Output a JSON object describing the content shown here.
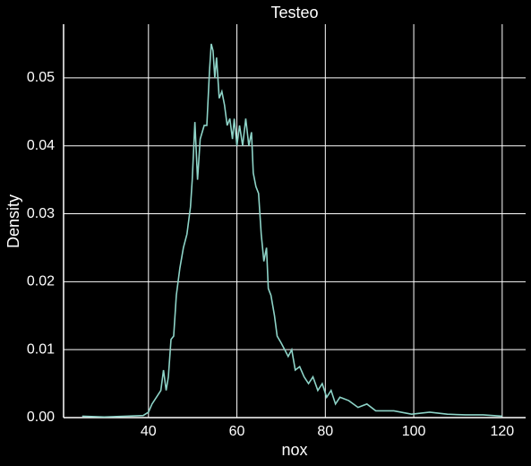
{
  "chart_data": {
    "type": "line",
    "title": "Testeo",
    "xlabel": "nox",
    "ylabel": "Density",
    "series": [
      {
        "color": "#8dd3c7",
        "x": [
          25,
          30,
          35,
          38.8,
          40,
          40.8,
          41.8,
          42.8,
          43.4,
          44,
          44.5,
          45.1,
          45.7,
          46.3,
          47.1,
          47.9,
          48.7,
          49.5,
          49.9,
          50.5,
          51.1,
          51.7,
          52.6,
          53.2,
          53.8,
          54.2,
          54.6,
          55,
          55.4,
          56,
          56.6,
          57.2,
          57.8,
          58.4,
          59,
          59.4,
          60,
          60.6,
          61.3,
          62,
          62.7,
          63.3,
          63.7,
          64.3,
          64.9,
          65.5,
          66.1,
          66.7,
          67.1,
          67.7,
          68.5,
          69.1,
          70,
          70.8,
          71.6,
          72.4,
          73.2,
          74.2,
          75.2,
          76.2,
          77.2,
          78.3,
          79.3,
          80.3,
          81.3,
          82.3,
          83.3,
          85.3,
          87.4,
          89.4,
          91.4,
          95.5,
          99.5,
          103.6,
          107.6,
          111.7,
          115.7,
          120
        ],
        "values": [
          0.0002,
          0.0001,
          0.0002,
          0.0003,
          0.0008,
          0.002,
          0.003,
          0.004,
          0.007,
          0.004,
          0.006,
          0.0115,
          0.012,
          0.018,
          0.022,
          0.025,
          0.027,
          0.031,
          0.035,
          0.0435,
          0.035,
          0.041,
          0.043,
          0.043,
          0.051,
          0.055,
          0.054,
          0.05,
          0.053,
          0.047,
          0.048,
          0.046,
          0.043,
          0.044,
          0.041,
          0.044,
          0.04,
          0.043,
          0.04,
          0.044,
          0.04,
          0.042,
          0.036,
          0.034,
          0.033,
          0.027,
          0.023,
          0.025,
          0.019,
          0.018,
          0.015,
          0.012,
          0.011,
          0.01,
          0.009,
          0.01,
          0.007,
          0.0075,
          0.006,
          0.005,
          0.006,
          0.004,
          0.005,
          0.003,
          0.004,
          0.002,
          0.003,
          0.0025,
          0.0015,
          0.002,
          0.001,
          0.001,
          0.0005,
          0.0008,
          0.0005,
          0.0004,
          0.0004,
          0.0002
        ]
      }
    ],
    "xlim": [
      20.8,
      125.3
    ],
    "ylim": [
      0,
      0.0579
    ],
    "xticks": [
      40,
      60,
      80,
      100,
      120
    ],
    "yticks": [
      {
        "value": 0,
        "label": "0.00"
      },
      {
        "value": 0.01,
        "label": "0.01"
      },
      {
        "value": 0.02,
        "label": "0.02"
      },
      {
        "value": 0.03,
        "label": "0.03"
      },
      {
        "value": 0.04,
        "label": "0.04"
      },
      {
        "value": 0.05,
        "label": "0.05"
      }
    ],
    "grid": true
  }
}
